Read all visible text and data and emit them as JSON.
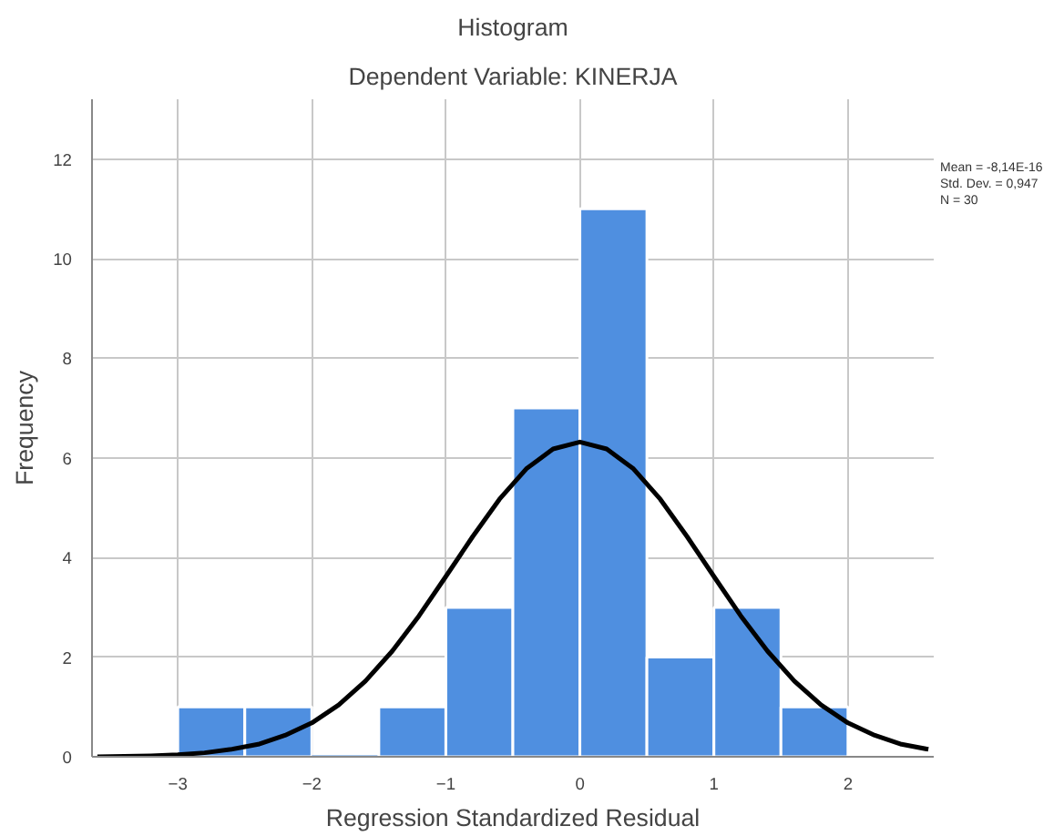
{
  "chart_data": {
    "type": "histogram",
    "title": "Histogram",
    "subtitle": "Dependent Variable: KINERJA",
    "xlabel": "Regression Standardized Residual",
    "ylabel": "Frequency",
    "bins": [
      -3,
      -2.5,
      -2,
      -1.5,
      -1,
      -0.5,
      0,
      0.5,
      1,
      1.5,
      2
    ],
    "values": [
      1,
      1,
      0,
      1,
      3,
      7,
      11,
      2,
      3,
      1
    ],
    "color": "#4f8fe0",
    "series": [
      {
        "type": "line",
        "color": "#000000",
        "x": [
          -3.6,
          -3.4,
          -3.2,
          -3.0,
          -2.8,
          -2.6,
          -2.4,
          -2.2,
          -2.0,
          -1.8,
          -1.6,
          -1.4,
          -1.2,
          -1.0,
          -0.8,
          -0.6,
          -0.4,
          -0.2,
          0,
          0.2,
          0.4,
          0.6,
          0.8,
          1.0,
          1.2,
          1.4,
          1.6,
          1.8,
          2.0,
          2.2,
          2.4,
          2.6
        ],
        "values": [
          0.0,
          0.01,
          0.02,
          0.04,
          0.08,
          0.15,
          0.25,
          0.43,
          0.68,
          1.04,
          1.52,
          2.12,
          2.83,
          3.62,
          4.42,
          5.17,
          5.78,
          6.18,
          6.32,
          6.18,
          5.78,
          5.17,
          4.42,
          3.62,
          2.83,
          2.12,
          1.52,
          1.04,
          0.68,
          0.43,
          0.25,
          0.15
        ]
      }
    ],
    "annotations": [
      "Mean = -8,14E-16",
      "Std. Dev. = 0,947",
      "N = 30"
    ],
    "xlim": [
      -3.64,
      2.64
    ],
    "ylim": [
      0,
      13.2
    ],
    "xticks": [
      -3,
      -2,
      -1,
      0,
      1,
      2
    ],
    "yticks": [
      0,
      2,
      4,
      6,
      8,
      10,
      12
    ],
    "grid": true
  }
}
